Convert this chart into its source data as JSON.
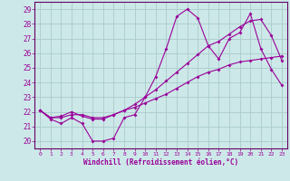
{
  "xlabel": "Windchill (Refroidissement éolien,°C)",
  "background_color": "#cde8e8",
  "line_color": "#990099",
  "grid_color": "#aacccc",
  "spine_color": "#660066",
  "xlim": [
    -0.5,
    23.5
  ],
  "ylim": [
    19.5,
    29.5
  ],
  "yticks": [
    20,
    21,
    22,
    23,
    24,
    25,
    26,
    27,
    28,
    29
  ],
  "xticks": [
    0,
    1,
    2,
    3,
    4,
    5,
    6,
    7,
    8,
    9,
    10,
    11,
    12,
    13,
    14,
    15,
    16,
    17,
    18,
    19,
    20,
    21,
    22,
    23
  ],
  "series1_x": [
    0,
    1,
    2,
    3,
    4,
    5,
    6,
    7,
    8,
    9,
    10,
    11,
    12,
    13,
    14,
    15,
    16,
    17,
    18,
    19,
    20,
    21,
    22,
    23
  ],
  "series1_y": [
    22.1,
    21.5,
    21.2,
    21.6,
    21.2,
    20.0,
    20.0,
    20.2,
    21.6,
    21.8,
    23.0,
    24.4,
    26.3,
    28.5,
    29.0,
    28.4,
    26.5,
    25.6,
    27.0,
    27.4,
    28.7,
    26.3,
    24.9,
    23.8
  ],
  "series2_x": [
    0,
    1,
    2,
    3,
    4,
    5,
    6,
    7,
    8,
    9,
    10,
    11,
    12,
    13,
    14,
    15,
    16,
    17,
    18,
    19,
    20,
    21,
    22,
    23
  ],
  "series2_y": [
    22.1,
    21.6,
    21.6,
    21.8,
    21.8,
    21.6,
    21.6,
    21.8,
    22.1,
    22.3,
    22.6,
    22.9,
    23.2,
    23.6,
    24.0,
    24.4,
    24.7,
    24.9,
    25.2,
    25.4,
    25.5,
    25.6,
    25.7,
    25.8
  ],
  "series3_x": [
    0,
    1,
    2,
    3,
    4,
    5,
    6,
    7,
    8,
    9,
    10,
    11,
    12,
    13,
    14,
    15,
    16,
    17,
    18,
    19,
    20,
    21,
    22,
    23
  ],
  "series3_y": [
    22.1,
    21.6,
    21.7,
    22.0,
    21.7,
    21.5,
    21.5,
    21.8,
    22.1,
    22.5,
    23.0,
    23.5,
    24.1,
    24.7,
    25.3,
    25.9,
    26.5,
    26.8,
    27.3,
    27.8,
    28.2,
    28.3,
    27.2,
    25.5
  ]
}
